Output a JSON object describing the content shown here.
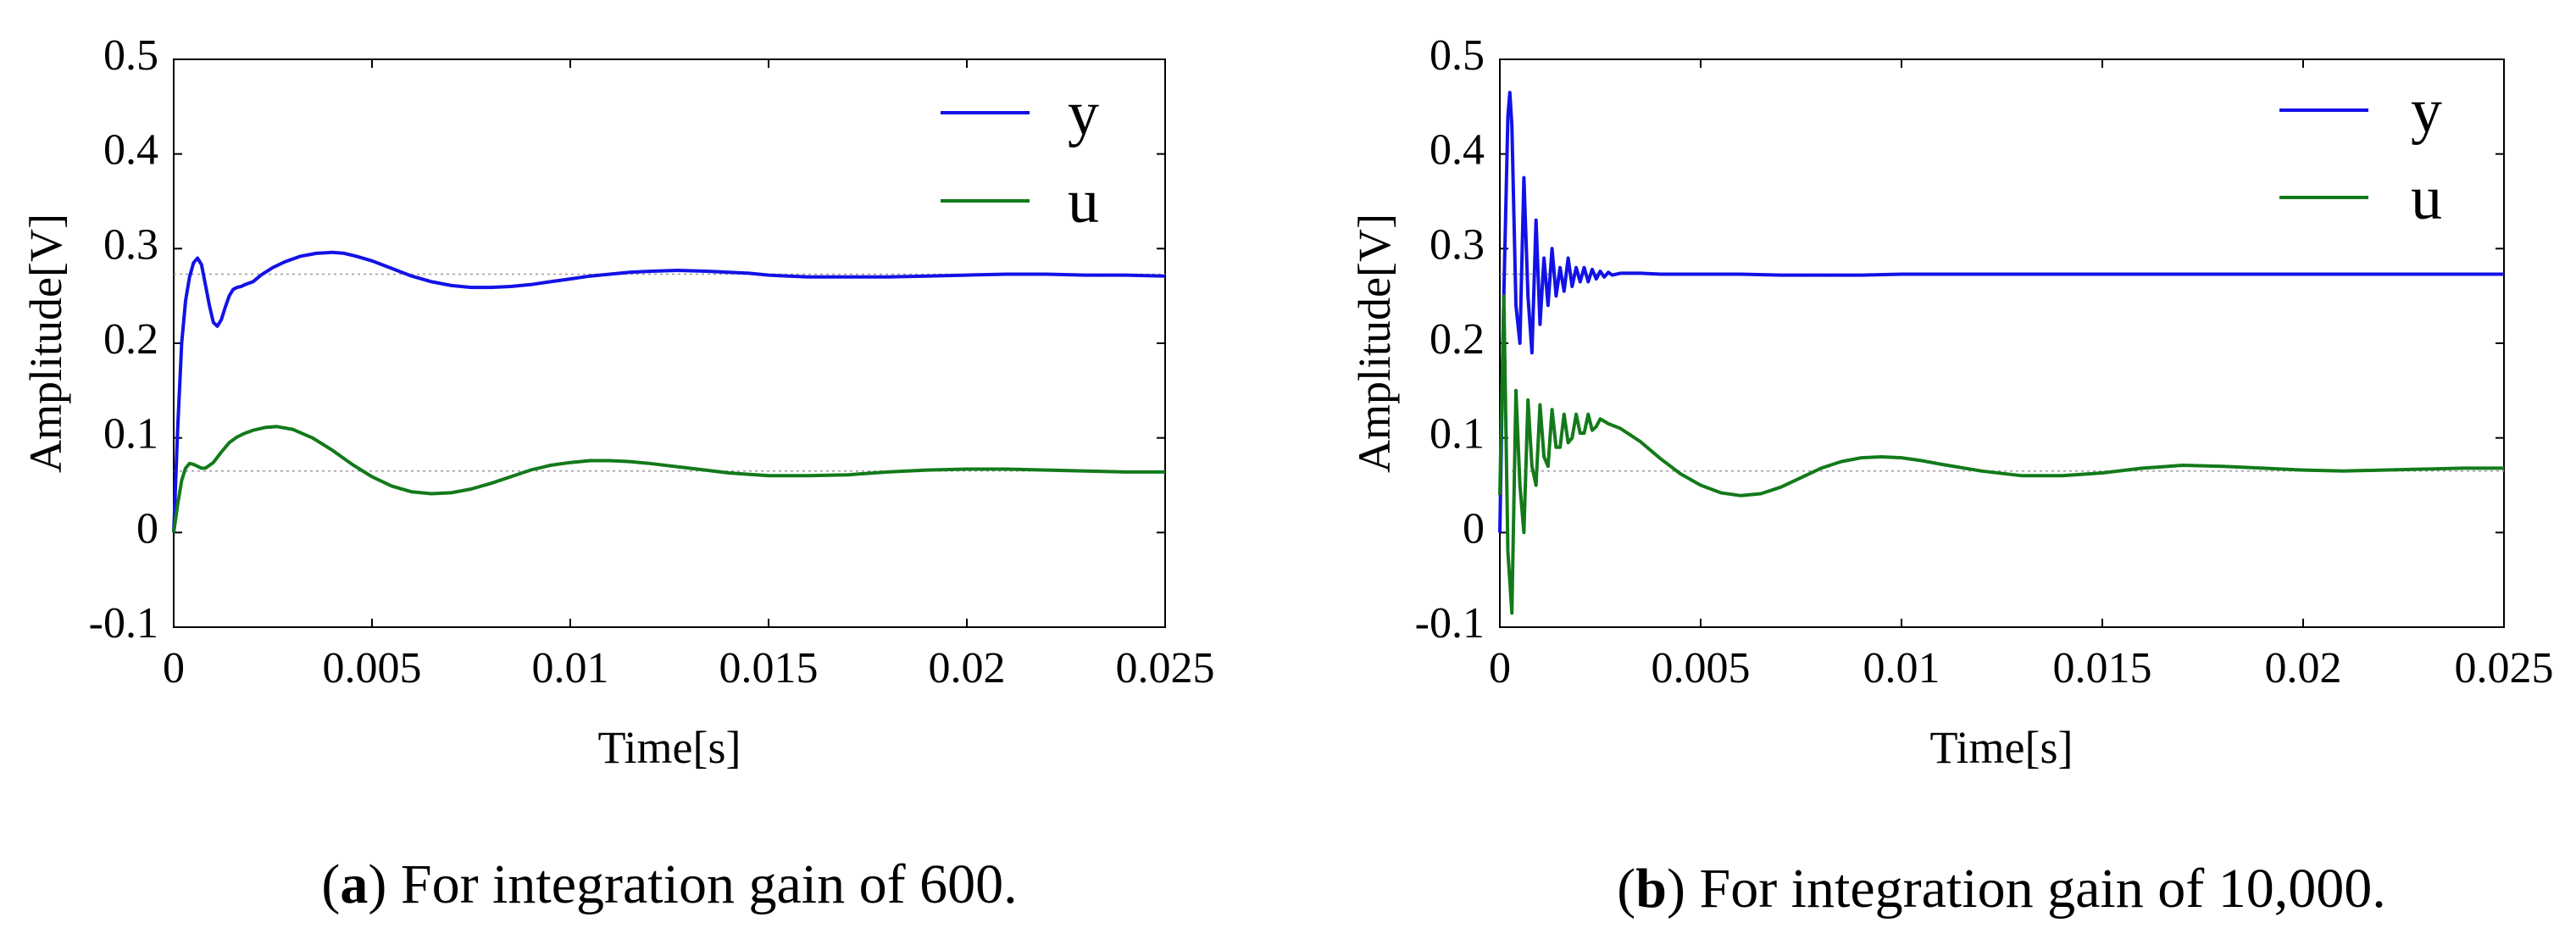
{
  "chart_data": [
    {
      "type": "line",
      "panel": "a",
      "caption_tag": "a",
      "caption_text": "For integration gain of 600.",
      "xlabel": "Time[s]",
      "ylabel": "Amplitude[V]",
      "xlim": [
        0,
        0.025
      ],
      "ylim": [
        -0.1,
        0.5
      ],
      "xticks": [
        0,
        0.005,
        0.01,
        0.015,
        0.02,
        0.025
      ],
      "xtick_labels": [
        "0",
        "0.005",
        "0.01",
        "0.015",
        "0.02",
        "0.025"
      ],
      "yticks": [
        -0.1,
        0,
        0.1,
        0.2,
        0.3,
        0.4,
        0.5
      ],
      "ytick_labels": [
        "-0.1",
        "0",
        "0.1",
        "0.2",
        "0.3",
        "0.4",
        "0.5"
      ],
      "legend_position": "top-right",
      "reference_lines": [
        0.273,
        0.065
      ],
      "series": [
        {
          "name": "y",
          "color": "#1212e6",
          "x": [
            0,
            0.0001,
            0.0002,
            0.0003,
            0.0004,
            0.0005,
            0.0006,
            0.0007,
            0.0008,
            0.0009,
            0.001,
            0.0011,
            0.0012,
            0.0013,
            0.0014,
            0.0015,
            0.0016,
            0.0017,
            0.0018,
            0.002,
            0.0022,
            0.0025,
            0.0028,
            0.0032,
            0.0036,
            0.004,
            0.0043,
            0.0046,
            0.005,
            0.0055,
            0.006,
            0.0065,
            0.007,
            0.0075,
            0.008,
            0.0085,
            0.009,
            0.0095,
            0.01,
            0.0105,
            0.011,
            0.0115,
            0.012,
            0.0127,
            0.0135,
            0.014,
            0.0145,
            0.015,
            0.0155,
            0.016,
            0.0165,
            0.017,
            0.018,
            0.019,
            0.02,
            0.021,
            0.022,
            0.023,
            0.024,
            0.025
          ],
          "y": [
            0,
            0.11,
            0.2,
            0.245,
            0.27,
            0.285,
            0.29,
            0.283,
            0.262,
            0.24,
            0.222,
            0.218,
            0.225,
            0.238,
            0.25,
            0.257,
            0.259,
            0.26,
            0.262,
            0.265,
            0.272,
            0.28,
            0.286,
            0.292,
            0.295,
            0.296,
            0.295,
            0.292,
            0.287,
            0.279,
            0.271,
            0.265,
            0.261,
            0.259,
            0.259,
            0.26,
            0.262,
            0.265,
            0.268,
            0.271,
            0.273,
            0.275,
            0.276,
            0.277,
            0.276,
            0.275,
            0.274,
            0.272,
            0.271,
            0.27,
            0.27,
            0.27,
            0.27,
            0.271,
            0.272,
            0.273,
            0.273,
            0.272,
            0.272,
            0.271
          ]
        },
        {
          "name": "u",
          "color": "#137a1a",
          "x": [
            0,
            0.0001,
            0.0002,
            0.0003,
            0.0004,
            0.0005,
            0.0006,
            0.0007,
            0.0008,
            0.001,
            0.0012,
            0.0014,
            0.0016,
            0.0018,
            0.002,
            0.0023,
            0.0026,
            0.003,
            0.0035,
            0.004,
            0.0045,
            0.005,
            0.0055,
            0.006,
            0.0065,
            0.007,
            0.0075,
            0.008,
            0.0085,
            0.009,
            0.0095,
            0.01,
            0.0105,
            0.011,
            0.0115,
            0.012,
            0.013,
            0.014,
            0.015,
            0.016,
            0.017,
            0.018,
            0.019,
            0.02,
            0.021,
            0.022,
            0.023,
            0.024,
            0.025
          ],
          "y": [
            0,
            0.03,
            0.055,
            0.068,
            0.073,
            0.072,
            0.07,
            0.068,
            0.068,
            0.074,
            0.085,
            0.095,
            0.101,
            0.105,
            0.108,
            0.111,
            0.112,
            0.109,
            0.1,
            0.087,
            0.072,
            0.059,
            0.049,
            0.043,
            0.041,
            0.042,
            0.046,
            0.052,
            0.059,
            0.066,
            0.071,
            0.074,
            0.076,
            0.076,
            0.075,
            0.073,
            0.068,
            0.063,
            0.06,
            0.06,
            0.061,
            0.064,
            0.066,
            0.067,
            0.067,
            0.066,
            0.065,
            0.064,
            0.064
          ]
        }
      ]
    },
    {
      "type": "line",
      "panel": "b",
      "caption_tag": "b",
      "caption_text": "For integration gain of 10,000.",
      "xlabel": "Time[s]",
      "ylabel": "Amplitude[V]",
      "xlim": [
        0,
        0.025
      ],
      "ylim": [
        -0.1,
        0.5
      ],
      "xticks": [
        0,
        0.005,
        0.01,
        0.015,
        0.02,
        0.025
      ],
      "xtick_labels": [
        "0",
        "0.005",
        "0.01",
        "0.015",
        "0.02",
        "0.025"
      ],
      "yticks": [
        -0.1,
        0,
        0.1,
        0.2,
        0.3,
        0.4,
        0.5
      ],
      "ytick_labels": [
        "-0.1",
        "0",
        "0.1",
        "0.2",
        "0.3",
        "0.4",
        "0.5"
      ],
      "legend_position": "top-right",
      "reference_lines": [
        0.273,
        0.065
      ],
      "series": [
        {
          "name": "y",
          "color": "#1212e6",
          "x": [
            0,
            0.0001,
            0.0002,
            0.00025,
            0.0003,
            0.0004,
            0.0005,
            0.0006,
            0.0007,
            0.0008,
            0.0009,
            0.001,
            0.0011,
            0.0012,
            0.0013,
            0.0014,
            0.0015,
            0.0016,
            0.0017,
            0.0018,
            0.0019,
            0.002,
            0.0021,
            0.0022,
            0.0023,
            0.0024,
            0.0025,
            0.0026,
            0.0027,
            0.0028,
            0.003,
            0.0035,
            0.004,
            0.005,
            0.006,
            0.007,
            0.008,
            0.009,
            0.01,
            0.011,
            0.012,
            0.013,
            0.014,
            0.015,
            0.016,
            0.017,
            0.018,
            0.019,
            0.02,
            0.021,
            0.022,
            0.023,
            0.024,
            0.025
          ],
          "y": [
            0,
            0.25,
            0.44,
            0.465,
            0.43,
            0.24,
            0.2,
            0.375,
            0.25,
            0.19,
            0.33,
            0.22,
            0.29,
            0.24,
            0.3,
            0.25,
            0.28,
            0.255,
            0.29,
            0.26,
            0.28,
            0.265,
            0.28,
            0.265,
            0.278,
            0.268,
            0.276,
            0.27,
            0.275,
            0.272,
            0.274,
            0.274,
            0.273,
            0.273,
            0.273,
            0.272,
            0.272,
            0.272,
            0.273,
            0.273,
            0.273,
            0.273,
            0.273,
            0.273,
            0.273,
            0.273,
            0.273,
            0.273,
            0.273,
            0.273,
            0.273,
            0.273,
            0.273,
            0.273
          ]
        },
        {
          "name": "u",
          "color": "#137a1a",
          "x": [
            0,
            0.0001,
            0.0002,
            0.0003,
            0.0004,
            0.0005,
            0.0006,
            0.0007,
            0.0008,
            0.0009,
            0.001,
            0.0011,
            0.0012,
            0.0013,
            0.0014,
            0.0015,
            0.0016,
            0.0017,
            0.0018,
            0.0019,
            0.002,
            0.0021,
            0.0022,
            0.0023,
            0.0024,
            0.0025,
            0.0027,
            0.003,
            0.0035,
            0.004,
            0.0045,
            0.005,
            0.0055,
            0.006,
            0.0065,
            0.007,
            0.0075,
            0.008,
            0.0085,
            0.009,
            0.0095,
            0.01,
            0.0105,
            0.011,
            0.012,
            0.013,
            0.014,
            0.015,
            0.016,
            0.017,
            0.018,
            0.019,
            0.02,
            0.021,
            0.022,
            0.023,
            0.024,
            0.025
          ],
          "y": [
            0.04,
            0.25,
            -0.02,
            -0.085,
            0.15,
            0.05,
            0.0,
            0.14,
            0.07,
            0.05,
            0.135,
            0.08,
            0.07,
            0.13,
            0.09,
            0.09,
            0.125,
            0.095,
            0.1,
            0.125,
            0.105,
            0.105,
            0.125,
            0.108,
            0.112,
            0.12,
            0.115,
            0.11,
            0.096,
            0.078,
            0.062,
            0.05,
            0.042,
            0.039,
            0.041,
            0.048,
            0.058,
            0.068,
            0.075,
            0.079,
            0.08,
            0.079,
            0.076,
            0.072,
            0.065,
            0.06,
            0.06,
            0.063,
            0.068,
            0.071,
            0.07,
            0.068,
            0.066,
            0.065,
            0.066,
            0.067,
            0.068,
            0.068
          ]
        }
      ]
    }
  ]
}
